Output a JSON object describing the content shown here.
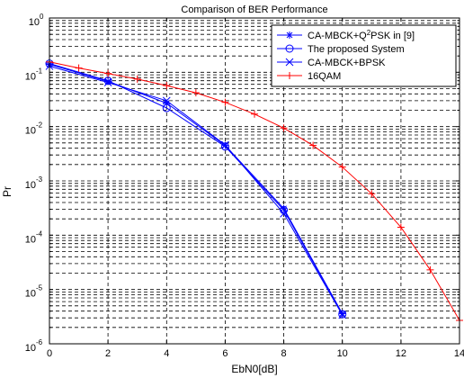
{
  "chart_data": {
    "type": "line",
    "title": "Comparison of BER Performance",
    "xlabel": "EbN0[dB]",
    "ylabel": "Pr",
    "xlim": [
      0,
      14
    ],
    "ylim": [
      1e-06,
      1
    ],
    "yscale": "log",
    "grid": true,
    "legend_position": "top-right",
    "x_ticks": [
      "0",
      "2",
      "4",
      "6",
      "8",
      "10",
      "12",
      "14"
    ],
    "y_tick_exponents": [
      "0",
      "-1",
      "-2",
      "-3",
      "-4",
      "-5",
      "-6"
    ],
    "y_tick_base": "10",
    "series": [
      {
        "name": "CA-MBCK+Q²PSK in [9]",
        "legend_parts": {
          "pre": "CA-MBCK+Q",
          "sup": "2",
          "post": "PSK in [9]"
        },
        "color": "#0000ff",
        "marker": "star",
        "x": [
          0,
          2,
          4,
          6,
          8,
          10
        ],
        "y": [
          0.14,
          0.068,
          0.027,
          0.0045,
          0.00031,
          3.6e-06
        ]
      },
      {
        "name": "The proposed System",
        "color": "#0000ff",
        "marker": "circle",
        "x": [
          0,
          2,
          4,
          6,
          8,
          10
        ],
        "y": [
          0.145,
          0.07,
          0.022,
          0.0043,
          0.00029,
          3.5e-06
        ]
      },
      {
        "name": "CA-MBCK+BPSK",
        "color": "#0000ff",
        "marker": "x",
        "x": [
          0,
          2,
          4,
          6,
          8,
          10
        ],
        "y": [
          0.13,
          0.065,
          0.03,
          0.0046,
          0.00025,
          3.4e-06
        ]
      },
      {
        "name": "16QAM",
        "color": "#ff0000",
        "marker": "plus",
        "x": [
          0,
          1,
          2,
          3,
          4,
          5,
          6,
          7,
          8,
          9,
          10,
          11,
          12,
          13,
          14
        ],
        "y": [
          0.155,
          0.12,
          0.095,
          0.075,
          0.057,
          0.042,
          0.028,
          0.017,
          0.0094,
          0.0045,
          0.0018,
          0.00058,
          0.00014,
          2.3e-05,
          2.7e-06
        ]
      }
    ]
  }
}
